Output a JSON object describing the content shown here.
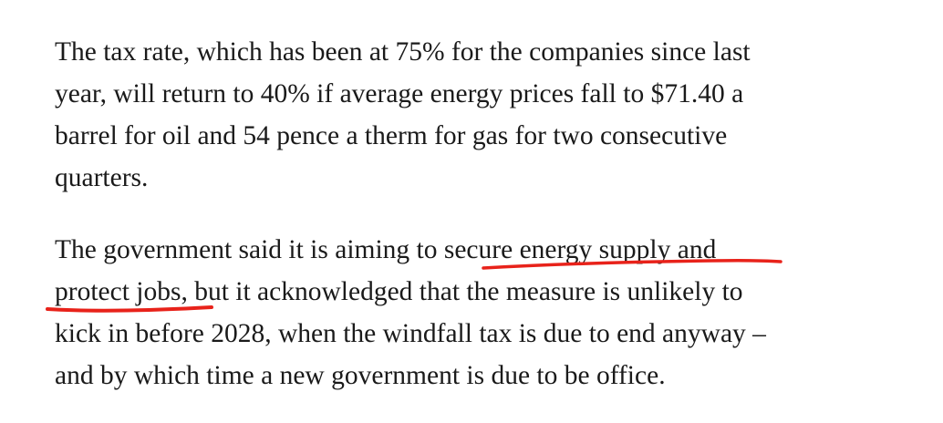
{
  "article": {
    "paragraphs": [
      {
        "lines": [
          "The tax rate, which has been at 75% for the companies since last",
          "year, will return to 40% if average energy prices fall to $71.40 a",
          "barrel for oil and 54 pence a therm for gas for two consecutive",
          "quarters."
        ]
      },
      {
        "lines": [
          "The government said it is aiming to secure energy supply and",
          "protect jobs, but it acknowledged that the measure is unlikely to",
          "kick in before 2028, when the windfall tax is due to end anyway –",
          "and by which time a new government is due to be office."
        ]
      }
    ]
  }
}
